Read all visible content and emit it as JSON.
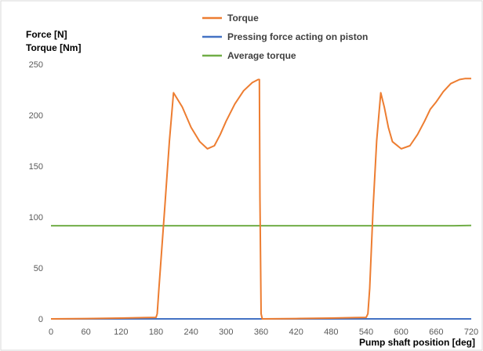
{
  "chart_data": {
    "type": "line",
    "title": "",
    "xlabel": "Pump shaft position [deg]",
    "ylabel_lines": [
      "Force [N]",
      "Torque [Nm]"
    ],
    "xlim": [
      0,
      720
    ],
    "ylim": [
      0,
      250
    ],
    "xticks": [
      0,
      60,
      120,
      180,
      240,
      300,
      360,
      420,
      480,
      540,
      600,
      660,
      720
    ],
    "yticks": [
      0,
      50,
      100,
      150,
      200,
      250
    ],
    "grid": false,
    "legend_position": "top",
    "series": [
      {
        "name": "Torque",
        "color": "#ED7D31",
        "x": [
          0,
          60,
          120,
          160,
          180,
          182,
          185,
          195,
          203,
          210,
          225,
          240,
          255,
          268,
          280,
          290,
          300,
          315,
          330,
          345,
          355,
          357,
          358,
          360,
          362,
          420,
          480,
          520,
          540,
          543,
          546,
          552,
          558,
          565,
          571,
          578,
          585,
          600,
          615,
          628,
          640,
          650,
          660,
          672,
          685,
          700,
          710,
          720
        ],
        "y": [
          0,
          0.3,
          0.8,
          1.2,
          1.5,
          5,
          30,
          110,
          175,
          222,
          208,
          188,
          174,
          167,
          170,
          181,
          194,
          211,
          224,
          232,
          235,
          235,
          120,
          5,
          0,
          0.3,
          0.8,
          1.2,
          1.5,
          5,
          30,
          110,
          175,
          222,
          208,
          188,
          174,
          167,
          170,
          181,
          194,
          206,
          213,
          223,
          231,
          235,
          236,
          236
        ]
      },
      {
        "name": "Pressing force acting on piston",
        "color": "#4472C4",
        "x": [
          0,
          720
        ],
        "y": [
          0,
          0
        ]
      },
      {
        "name": "Average torque",
        "color": "#70AD47",
        "x": [
          0,
          690,
          720
        ],
        "y": [
          91.5,
          91.5,
          91.8
        ]
      }
    ]
  }
}
